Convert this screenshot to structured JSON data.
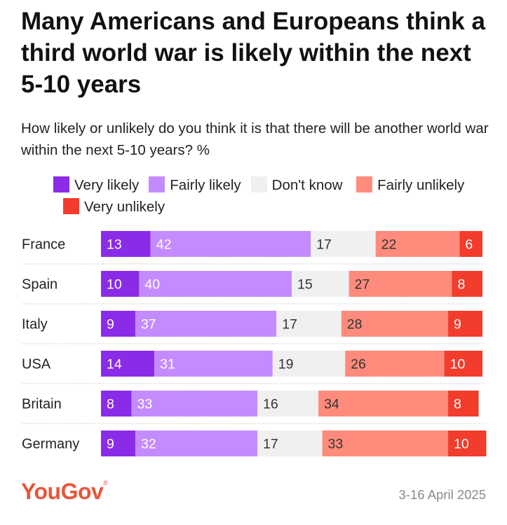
{
  "title": "Many Americans and Europeans think a third world war is likely within the next 5-10 years",
  "subtitle": "How likely or unlikely do you think it is that there will be another world war within the next 5-10 years? %",
  "footer": {
    "brand": "YouGov",
    "brand_mark": "®",
    "date": "3-16 April 2025"
  },
  "colors": {
    "very_likely": "#8a2be8",
    "fairly_likely": "#c48bff",
    "dont_know": "#f0f0f0",
    "fairly_unlikely": "#ff8b7c",
    "very_unlikely": "#f23c2c"
  },
  "chart_data": {
    "type": "bar",
    "orientation": "horizontal",
    "stacked": true,
    "title": "Many Americans and Europeans think a third world war is likely within the next 5-10 years",
    "subtitle": "How likely or unlikely do you think it is that there will be another world war within the next 5-10 years? %",
    "categories": [
      "France",
      "Spain",
      "Italy",
      "USA",
      "Britain",
      "Germany"
    ],
    "series": [
      {
        "name": "Very likely",
        "values": [
          13,
          10,
          9,
          14,
          8,
          9
        ]
      },
      {
        "name": "Fairly likely",
        "values": [
          42,
          40,
          37,
          31,
          33,
          32
        ]
      },
      {
        "name": "Don't know",
        "values": [
          17,
          15,
          17,
          19,
          16,
          17
        ]
      },
      {
        "name": "Fairly unlikely",
        "values": [
          22,
          27,
          28,
          26,
          34,
          33
        ]
      },
      {
        "name": "Very unlikely",
        "values": [
          6,
          8,
          9,
          10,
          8,
          10
        ]
      }
    ],
    "legend_position": "top",
    "xlim": [
      0,
      100
    ],
    "grid": false
  }
}
